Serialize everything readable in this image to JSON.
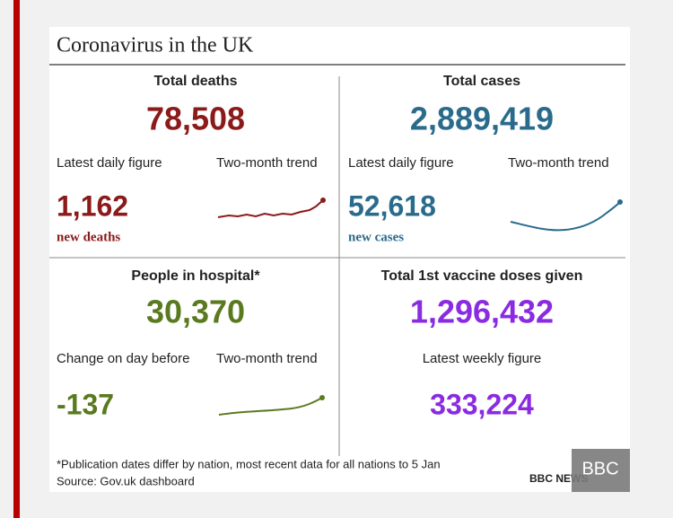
{
  "header": {
    "title": "Coronavirus in the UK"
  },
  "panels": [
    {
      "heading": "Total deaths",
      "total": "78,508",
      "left_label": "Latest daily figure",
      "right_label": "Two-month trend",
      "figure": "1,162",
      "figure_note": "new deaths"
    },
    {
      "heading": "Total cases",
      "total": "2,889,419",
      "left_label": "Latest daily figure",
      "right_label": "Two-month trend",
      "figure": "52,618",
      "figure_note": "new cases"
    },
    {
      "heading": "People in hospital*",
      "total": "30,370",
      "left_label": "Change on day before",
      "right_label": "Two-month trend",
      "figure": "-137"
    },
    {
      "heading": "Total 1st vaccine doses given",
      "total": "1,296,432",
      "center_label": "Latest weekly figure",
      "figure": "333,224"
    }
  ],
  "footer": {
    "note": "*Publication dates differ by nation, most recent data for all nations to 5 Jan",
    "source": "Source: Gov.uk dashboard",
    "logo": "BBC NEWS"
  },
  "watermark": "BBC"
}
